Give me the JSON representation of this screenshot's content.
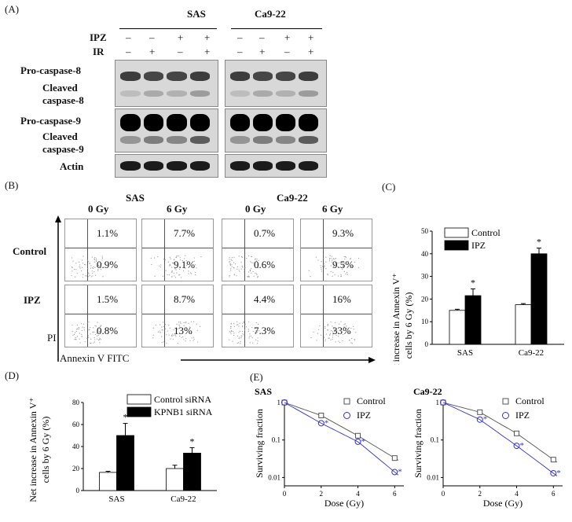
{
  "panel_a": {
    "letter": "(A)",
    "groups": [
      "SAS",
      "Ca9-22"
    ],
    "row_ipz": "IPZ",
    "row_ir": "IR",
    "ipz_signs": [
      "–",
      "–",
      "+",
      "+",
      "–",
      "–",
      "+",
      "+"
    ],
    "ir_signs": [
      "–",
      "+",
      "–",
      "+",
      "–",
      "+",
      "–",
      "+"
    ],
    "labels": {
      "pro8": "Pro-caspase-8",
      "cleaved8_a": "Cleaved",
      "cleaved8_b": "caspase-8",
      "pro9": "Pro-caspase-9",
      "cleaved9_a": "Cleaved",
      "cleaved9_b": "caspase-9",
      "actin": "Actin"
    }
  },
  "panel_b": {
    "letter": "(B)",
    "groups": [
      "SAS",
      "Ca9-22"
    ],
    "doses": [
      "0 Gy",
      "6 Gy",
      "0 Gy",
      "6 Gy"
    ],
    "rows": [
      "Control",
      "IPZ"
    ],
    "y_axis": "PI",
    "x_axis": "Annexin V FITC",
    "values": {
      "control_upper": [
        "1.1%",
        "7.7%",
        "0.7%",
        "9.3%"
      ],
      "control_lower": [
        "0.9%",
        "9.1%",
        "0.6%",
        "9.5%"
      ],
      "ipz_upper": [
        "1.5%",
        "8.7%",
        "4.4%",
        "16%"
      ],
      "ipz_lower": [
        "0.8%",
        "13%",
        "7.3%",
        "33%"
      ]
    }
  },
  "panel_c": {
    "letter": "(C)",
    "ylabel1": "Net increase in Annexin V⁺",
    "ylabel2": "cells by 6 Gy (%)",
    "star": "*"
  },
  "panel_d": {
    "letter": "(D)",
    "ylabel1": "Net increase in Annexin V⁺",
    "ylabel2": "cells by 6 Gy (%)",
    "star": "*"
  },
  "panel_e": {
    "letter": "(E)",
    "ylabel": "Surviving fraction",
    "star": "*"
  },
  "chart_data": [
    {
      "id": "C",
      "type": "bar",
      "categories": [
        "SAS",
        "Ca9-22"
      ],
      "series": [
        {
          "name": "Control",
          "values": [
            15,
            17.5
          ],
          "errors": [
            0.5,
            0.5
          ],
          "color": "#ffffff"
        },
        {
          "name": "IPZ",
          "values": [
            21.5,
            40
          ],
          "errors": [
            3,
            2.5
          ],
          "color": "#000000"
        }
      ],
      "ylim": [
        0,
        50
      ],
      "yticks": [
        0,
        10,
        20,
        30,
        40,
        50
      ],
      "legend": "top-left"
    },
    {
      "id": "D",
      "type": "bar",
      "categories": [
        "SAS",
        "Ca9-22"
      ],
      "series": [
        {
          "name": "Control siRNA",
          "values": [
            16.5,
            20
          ],
          "errors": [
            1,
            3
          ],
          "color": "#ffffff"
        },
        {
          "name": "KPNB1 siRNA",
          "values": [
            50,
            34
          ],
          "errors": [
            11,
            5
          ],
          "color": "#000000"
        }
      ],
      "ylim": [
        0,
        80
      ],
      "yticks": [
        0,
        20,
        40,
        60,
        80
      ],
      "legend": "top-right"
    },
    {
      "id": "E-SAS",
      "type": "line",
      "title": "SAS",
      "xlabel": "Dose (Gy)",
      "ylabel": "Surviving  fraction",
      "yscale": "log",
      "x": [
        0,
        2,
        4,
        6
      ],
      "xlim": [
        0,
        6.5
      ],
      "ylim": [
        0.006,
        1.1
      ],
      "xticks": [
        0,
        2,
        4,
        6
      ],
      "yticks": [
        0.01,
        0.1,
        1
      ],
      "series": [
        {
          "name": "Control",
          "values": [
            1,
            0.45,
            0.13,
            0.033
          ],
          "color": "#555555",
          "marker": "square"
        },
        {
          "name": "IPZ",
          "values": [
            1,
            0.28,
            0.09,
            0.014
          ],
          "color": "#3333cc",
          "marker": "circle"
        }
      ]
    },
    {
      "id": "E-Ca9-22",
      "type": "line",
      "title": "Ca9-22",
      "xlabel": "Dose (Gy)",
      "ylabel": "Surviving  fraction",
      "yscale": "log",
      "x": [
        0,
        2,
        4,
        6
      ],
      "xlim": [
        0,
        6.5
      ],
      "ylim": [
        0.006,
        1.1
      ],
      "xticks": [
        0,
        2,
        4,
        6
      ],
      "yticks": [
        0.01,
        0.1,
        1
      ],
      "series": [
        {
          "name": "Control",
          "values": [
            1,
            0.55,
            0.15,
            0.03
          ],
          "color": "#555555",
          "marker": "square"
        },
        {
          "name": "IPZ",
          "values": [
            1,
            0.35,
            0.07,
            0.013
          ],
          "color": "#3333cc",
          "marker": "circle"
        }
      ]
    }
  ]
}
